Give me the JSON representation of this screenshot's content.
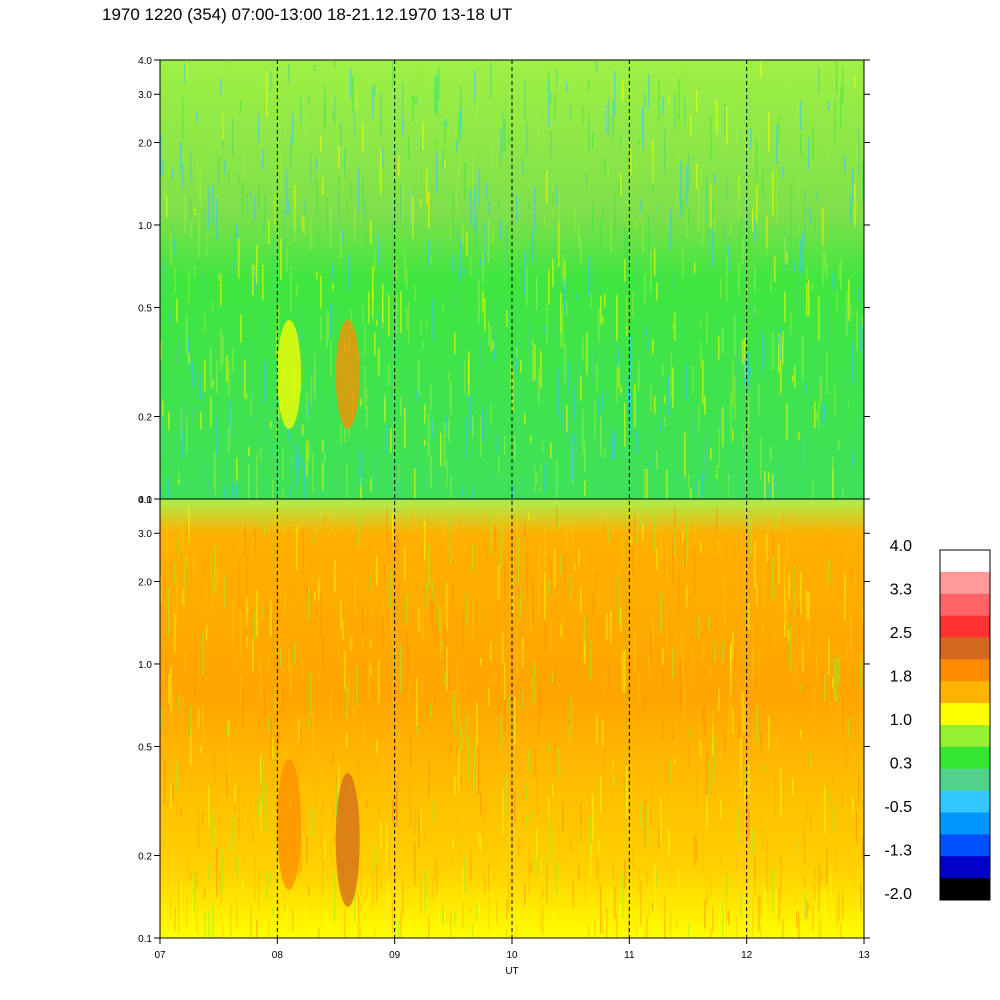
{
  "title": "1970 1220 (354) 07:00-13:00 18-21.12.1970  13-18 UT",
  "chart_data": {
    "type": "heatmap",
    "title": "1970 1220 (354) 07:00-13:00 18-21.12.1970  13-18 UT",
    "xlabel": "UT",
    "x_ticks": [
      "07",
      "08",
      "09",
      "10",
      "11",
      "12",
      "13"
    ],
    "xlim": [
      7,
      13
    ],
    "dashed_hours": [
      8,
      9,
      10,
      11,
      12
    ],
    "y_scale": "log",
    "ylim": [
      0.1,
      4.0
    ],
    "y_ticks": [
      {
        "value": 0.1,
        "label": "0.1"
      },
      {
        "value": 0.2,
        "label": "0.2"
      },
      {
        "value": 0.5,
        "label": "0.5"
      },
      {
        "value": 1.0,
        "label": "1.0"
      },
      {
        "value": 2.0,
        "label": "2.0"
      },
      {
        "value": 3.0,
        "label": "3.0"
      },
      {
        "value": 4.0,
        "label": "4.0"
      }
    ],
    "panels": [
      {
        "name": "upper",
        "dominant_level": 0.3,
        "features": [
          {
            "x": 8.6,
            "y": [
              0.18,
              0.45
            ],
            "level": 1.8
          },
          {
            "x": 8.1,
            "y": [
              0.18,
              0.45
            ],
            "level": 1.0
          }
        ]
      },
      {
        "name": "lower",
        "dominant_level": 1.8,
        "features": [
          {
            "x": 8.6,
            "y": [
              0.13,
              0.4
            ],
            "level": 2.5
          },
          {
            "x": 8.1,
            "y": [
              0.15,
              0.45
            ],
            "level": 2.2
          }
        ]
      }
    ],
    "colorbar": {
      "labels": [
        "4.0",
        "3.3",
        "2.5",
        "1.8",
        "1.0",
        "0.3",
        "-0.5",
        "-1.3",
        "-2.0"
      ],
      "colors": [
        "#ffffff",
        "#ff9a9a",
        "#ff6464",
        "#ff3232",
        "#d2691e",
        "#ff8c00",
        "#ffb400",
        "#ffff00",
        "#96f032",
        "#32e632",
        "#50d28c",
        "#32c8ff",
        "#0096ff",
        "#0050ff",
        "#0000c8",
        "#000000"
      ]
    }
  }
}
